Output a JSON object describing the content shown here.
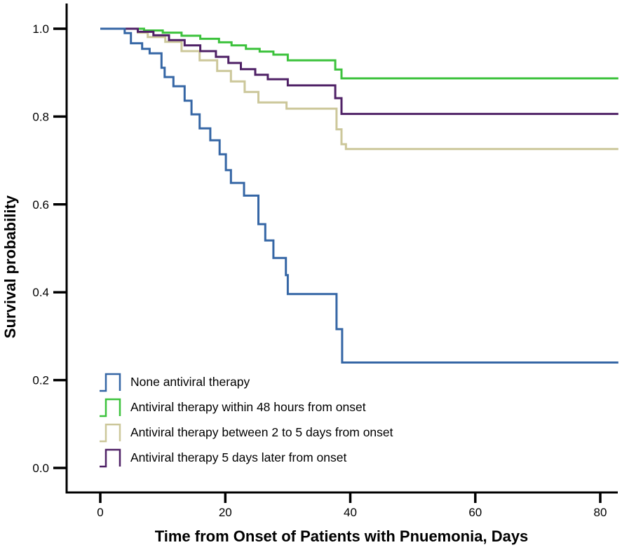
{
  "chart_data": {
    "type": "line",
    "subtype": "kaplan-meier-step-survival",
    "title": "",
    "xlabel": "Time from Onset of Patients with Pnuemonia, Days",
    "ylabel": "Survival probability",
    "x_ticks": [
      "0",
      "20",
      "40",
      "60",
      "80"
    ],
    "y_ticks": [
      "0.0",
      "0.2",
      "0.4",
      "0.6",
      "0.8",
      "1.0"
    ],
    "xlim": [
      0,
      80
    ],
    "ylim": [
      0.0,
      1.0
    ],
    "grid": false,
    "legend_position": "inside-lower-left",
    "curve_end_day": 82.9,
    "axis_color": "#000000",
    "series": [
      {
        "name": "None antiviral therapy",
        "color": "#3566A5",
        "final_value": 0.24,
        "points": [
          [
            0,
            1.0
          ],
          [
            3.9,
            0.99
          ],
          [
            4.9,
            0.967
          ],
          [
            6.7,
            0.954
          ],
          [
            7.9,
            0.944
          ],
          [
            9.8,
            0.911
          ],
          [
            10.3,
            0.89
          ],
          [
            11.7,
            0.869
          ],
          [
            13.5,
            0.836
          ],
          [
            14.6,
            0.805
          ],
          [
            15.9,
            0.773
          ],
          [
            17.6,
            0.746
          ],
          [
            19.1,
            0.714
          ],
          [
            20.1,
            0.678
          ],
          [
            20.9,
            0.649
          ],
          [
            23.0,
            0.62
          ],
          [
            25.3,
            0.555
          ],
          [
            26.4,
            0.518
          ],
          [
            27.7,
            0.478
          ],
          [
            29.7,
            0.439
          ],
          [
            30.0,
            0.396
          ],
          [
            37.8,
            0.316
          ],
          [
            38.7,
            0.24
          ]
        ]
      },
      {
        "name": "Antiviral therapy within 48 hours from onset",
        "color": "#3CC23C",
        "final_value": 0.89,
        "points": [
          [
            3.9,
            1.0
          ],
          [
            7.0,
            0.996
          ],
          [
            10.0,
            0.991
          ],
          [
            13.0,
            0.984
          ],
          [
            16.0,
            0.977
          ],
          [
            19.0,
            0.969
          ],
          [
            21.0,
            0.962
          ],
          [
            23.3,
            0.954
          ],
          [
            25.5,
            0.948
          ],
          [
            27.7,
            0.941
          ],
          [
            30.0,
            0.928
          ],
          [
            37.6,
            0.907
          ],
          [
            38.6,
            0.887
          ]
        ]
      },
      {
        "name": "Antiviral therapy between 2 to 5 days from onset",
        "color": "#CCC79A",
        "final_value": 0.73,
        "points": [
          [
            3.9,
            1.0
          ],
          [
            6.0,
            0.991
          ],
          [
            7.6,
            0.981
          ],
          [
            10.4,
            0.97
          ],
          [
            13.0,
            0.949
          ],
          [
            15.9,
            0.928
          ],
          [
            18.7,
            0.904
          ],
          [
            20.9,
            0.88
          ],
          [
            23.1,
            0.856
          ],
          [
            25.3,
            0.832
          ],
          [
            29.8,
            0.818
          ],
          [
            37.8,
            0.771
          ],
          [
            38.6,
            0.737
          ],
          [
            39.3,
            0.726
          ]
        ]
      },
      {
        "name": "Antiviral therapy 5 days later from onset",
        "color": "#4F2166",
        "final_value": 0.81,
        "points": [
          [
            3.9,
            1.0
          ],
          [
            6.0,
            0.993
          ],
          [
            8.5,
            0.985
          ],
          [
            11.0,
            0.974
          ],
          [
            13.5,
            0.962
          ],
          [
            16.0,
            0.949
          ],
          [
            18.5,
            0.936
          ],
          [
            20.5,
            0.922
          ],
          [
            22.5,
            0.908
          ],
          [
            24.8,
            0.895
          ],
          [
            26.8,
            0.885
          ],
          [
            30.0,
            0.871
          ],
          [
            37.6,
            0.842
          ],
          [
            38.6,
            0.806
          ]
        ]
      }
    ]
  }
}
